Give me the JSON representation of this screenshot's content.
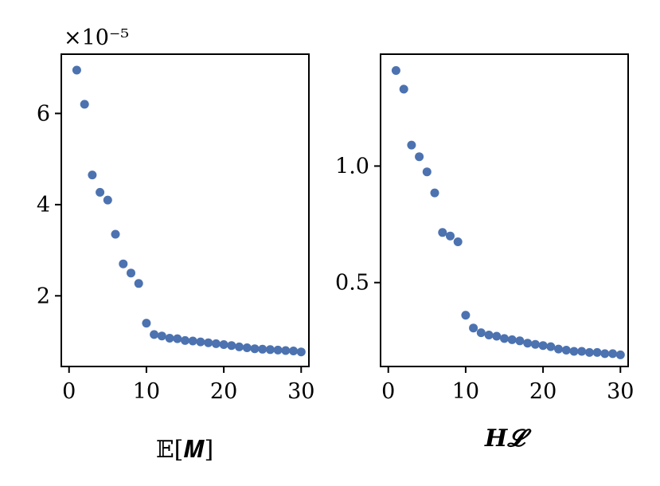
{
  "chart_data": [
    {
      "type": "scatter",
      "xlabel": "𝔼[𝑴]",
      "ylabel": "",
      "offset_label": "×10⁻⁵",
      "xlim": [
        -1,
        31
      ],
      "ylim": [
        0.45,
        7.3
      ],
      "xticks": [
        0,
        10,
        20,
        30
      ],
      "xtick_labels": [
        "0",
        "10",
        "20",
        "30"
      ],
      "yticks": [
        2,
        4,
        6
      ],
      "ytick_labels": [
        "2",
        "4",
        "6"
      ],
      "marker_color": "#4c72b0",
      "x": [
        1,
        2,
        3,
        4,
        5,
        6,
        7,
        8,
        9,
        10,
        11,
        12,
        13,
        14,
        15,
        16,
        17,
        18,
        19,
        20,
        21,
        22,
        23,
        24,
        25,
        26,
        27,
        28,
        29,
        30
      ],
      "y": [
        6.95,
        6.2,
        4.65,
        4.27,
        4.1,
        3.35,
        2.7,
        2.5,
        2.27,
        1.4,
        1.15,
        1.12,
        1.07,
        1.06,
        1.02,
        1.01,
        0.99,
        0.97,
        0.95,
        0.93,
        0.91,
        0.88,
        0.86,
        0.84,
        0.83,
        0.82,
        0.81,
        0.8,
        0.79,
        0.77
      ]
    },
    {
      "type": "scatter",
      "xlabel": "𝑯𝓛",
      "ylabel": "",
      "xlim": [
        -1,
        31
      ],
      "ylim": [
        0.14,
        1.48
      ],
      "xticks": [
        0,
        10,
        20,
        30
      ],
      "xtick_labels": [
        "0",
        "10",
        "20",
        "30"
      ],
      "yticks": [
        0.5,
        1.0
      ],
      "ytick_labels": [
        "0.5",
        "1.0"
      ],
      "marker_color": "#4c72b0",
      "x": [
        1,
        2,
        3,
        4,
        5,
        6,
        7,
        8,
        9,
        10,
        11,
        12,
        13,
        14,
        15,
        16,
        17,
        18,
        19,
        20,
        21,
        22,
        23,
        24,
        25,
        26,
        27,
        28,
        29,
        30
      ],
      "y": [
        1.41,
        1.33,
        1.09,
        1.04,
        0.975,
        0.885,
        0.715,
        0.7,
        0.675,
        0.36,
        0.305,
        0.285,
        0.275,
        0.27,
        0.26,
        0.255,
        0.25,
        0.24,
        0.235,
        0.23,
        0.225,
        0.215,
        0.21,
        0.205,
        0.205,
        0.2,
        0.2,
        0.195,
        0.195,
        0.19
      ]
    }
  ]
}
